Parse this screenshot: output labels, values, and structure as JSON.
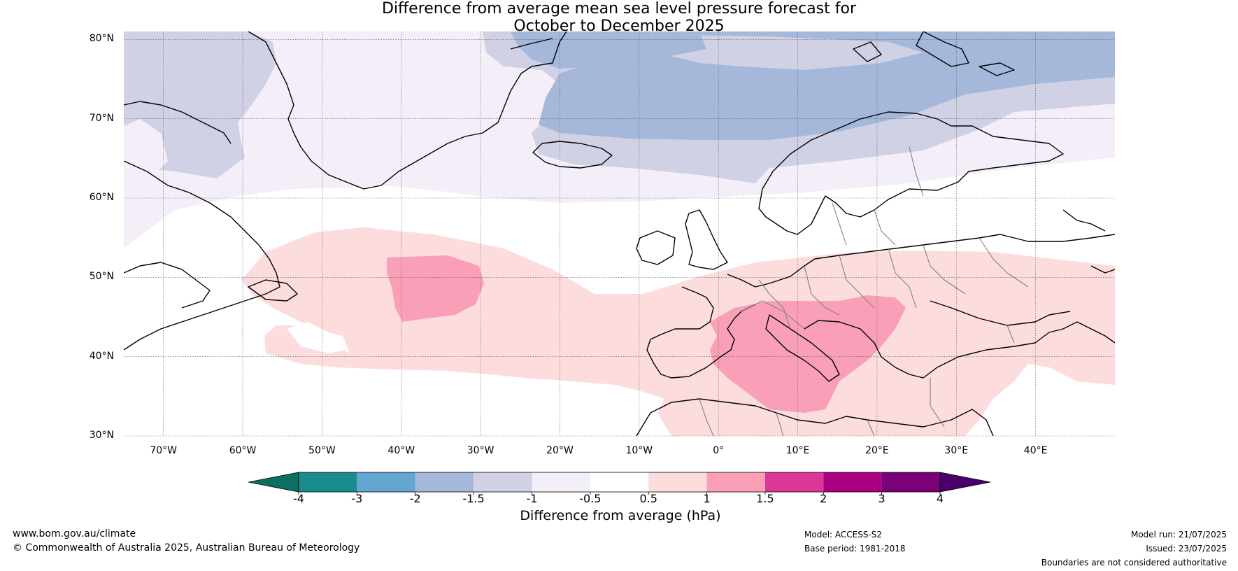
{
  "title": {
    "line1": "Difference from average mean sea level pressure forecast for",
    "line2": "October to December 2025"
  },
  "map": {
    "lon_range": [
      -75,
      50
    ],
    "lat_range": [
      30,
      81
    ],
    "lat_labels": [
      "30°N",
      "40°N",
      "50°N",
      "60°N",
      "70°N",
      "80°N"
    ],
    "lat_values": [
      30,
      40,
      50,
      60,
      70,
      80
    ],
    "lon_labels": [
      "70°W",
      "60°W",
      "50°W",
      "40°W",
      "30°W",
      "20°W",
      "10°W",
      "0°",
      "10°E",
      "20°E",
      "30°E",
      "40°E"
    ],
    "lon_values": [
      -70,
      -60,
      -50,
      -40,
      -30,
      -20,
      -10,
      0,
      10,
      20,
      30,
      40
    ],
    "coast_color": "#000000",
    "border_color": "#808080"
  },
  "colorbar": {
    "label": "Difference from average (hPa)",
    "ticks": [
      "-4",
      "-3",
      "-2",
      "-1.5",
      "-1",
      "-0.5",
      "0.5",
      "1",
      "1.5",
      "2",
      "3",
      "4"
    ],
    "colors": [
      "#1a8c8f",
      "#63a6cf",
      "#a5b8d9",
      "#d0d1e5",
      "#f3eef7",
      "#ffffff",
      "#fddcdd",
      "#f9a0b8",
      "#dd3699",
      "#ac0080",
      "#7a0177"
    ],
    "under_color": "#0b7060",
    "over_color": "#49006a"
  },
  "footer": {
    "website": "www.bom.gov.au/climate",
    "copyright": "© Commonwealth of Australia 2025, Australian Bureau of Meteorology",
    "model": "Model: ACCESS-S2",
    "base_period": "Base period: 1981-2018",
    "model_run": "Model run: 21/07/2025",
    "issued": "Issued: 23/07/2025",
    "disclaimer": "Boundaries are not considered authoritative"
  }
}
